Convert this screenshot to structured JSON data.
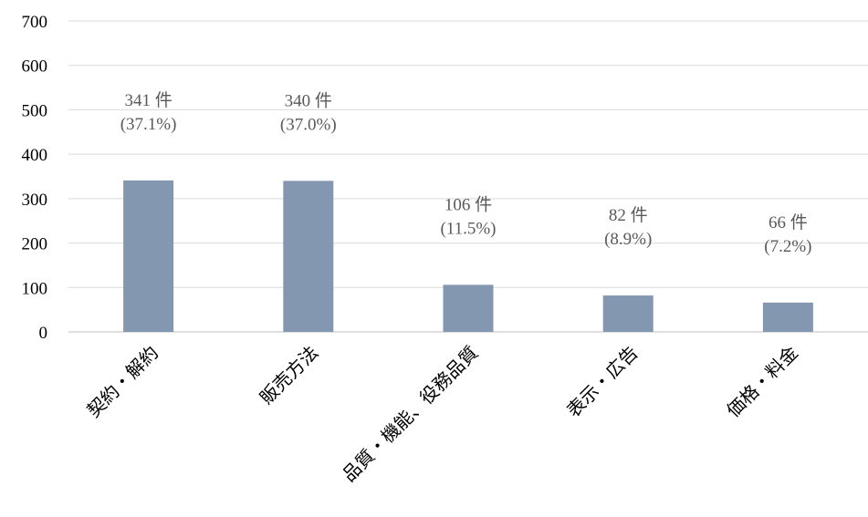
{
  "chart_data": {
    "type": "bar",
    "categories": [
      "契約・解約",
      "販売方法",
      "品質・機能、役務品質",
      "表示・広告",
      "価格・料金"
    ],
    "values": [
      341,
      340,
      106,
      82,
      66
    ],
    "data_labels": [
      {
        "count": "341 件",
        "pct": "(37.1%)"
      },
      {
        "count": "340 件",
        "pct": "(37.0%)"
      },
      {
        "count": "106 件",
        "pct": "(11.5%)"
      },
      {
        "count": "82 件",
        "pct": "(8.9%)"
      },
      {
        "count": "66 件",
        "pct": "(7.2%)"
      }
    ],
    "y_ticks": [
      "0",
      "100",
      "200",
      "300",
      "400",
      "500",
      "600",
      "700"
    ],
    "ylim": [
      0,
      700
    ],
    "grid": true,
    "legend": "none",
    "colors": {
      "bar": "#8497b0",
      "grid": "#d9d9d9",
      "axis": "#bfbfbf"
    }
  }
}
